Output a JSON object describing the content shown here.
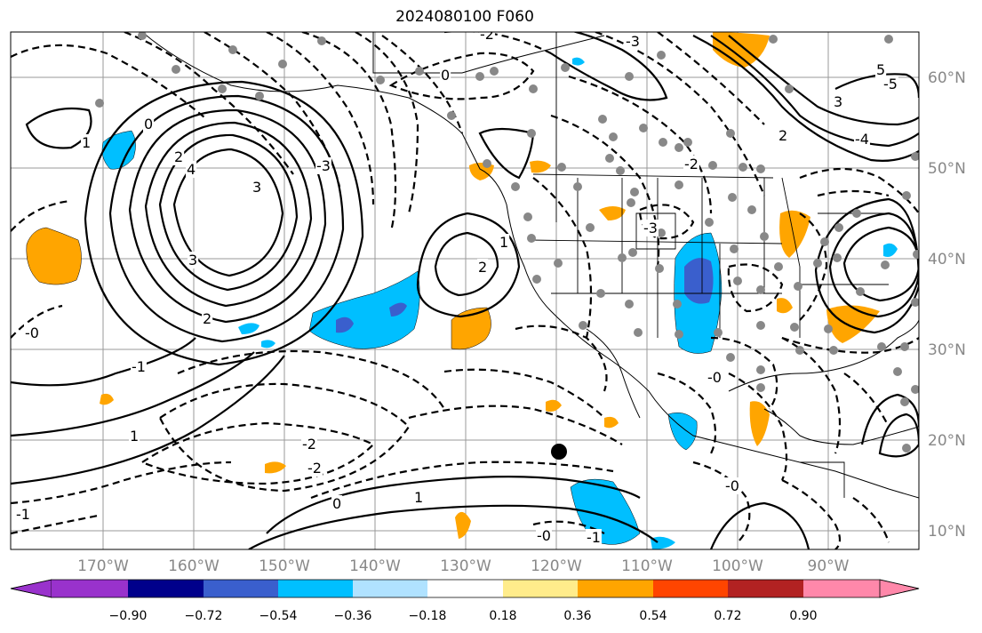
{
  "title": "2024080100 F060",
  "longitude_labels": [
    "170°W",
    "160°W",
    "150°W",
    "140°W",
    "130°W",
    "120°W",
    "110°W",
    "100°W",
    "90°W"
  ],
  "latitude_labels": [
    "60°N",
    "50°N",
    "40°N",
    "30°N",
    "20°N",
    "10°N"
  ],
  "colorbar": {
    "ticks": [
      "−0.90",
      "−0.72",
      "−0.54",
      "−0.36",
      "−0.18",
      "0.18",
      "0.36",
      "0.54",
      "0.72",
      "0.90"
    ],
    "colors": [
      "#9932cc",
      "#00008b",
      "#3a5fcd",
      "#00bfff",
      "#b0e2ff",
      "#ffffff",
      "#ffec8b",
      "#ffa500",
      "#ff4500",
      "#b22222",
      "#ff88aa"
    ]
  },
  "contour_labels": [
    "0",
    "2",
    "3",
    "4",
    "5",
    "1",
    "-0",
    "-1",
    "-2",
    "-3",
    "-4",
    "-5",
    "0",
    "-2",
    "-3",
    "1",
    "2",
    "3",
    "-1",
    "-2",
    "0",
    "1",
    "2",
    "3",
    "-3",
    "-1",
    "-0",
    "-0",
    "-2",
    "-0",
    "2",
    "1"
  ],
  "fill_colors": {
    "orange": "#ffa500",
    "deepskyblue": "#00bfff",
    "royalblue": "#3a5fcd",
    "station_gray": "#888888"
  }
}
